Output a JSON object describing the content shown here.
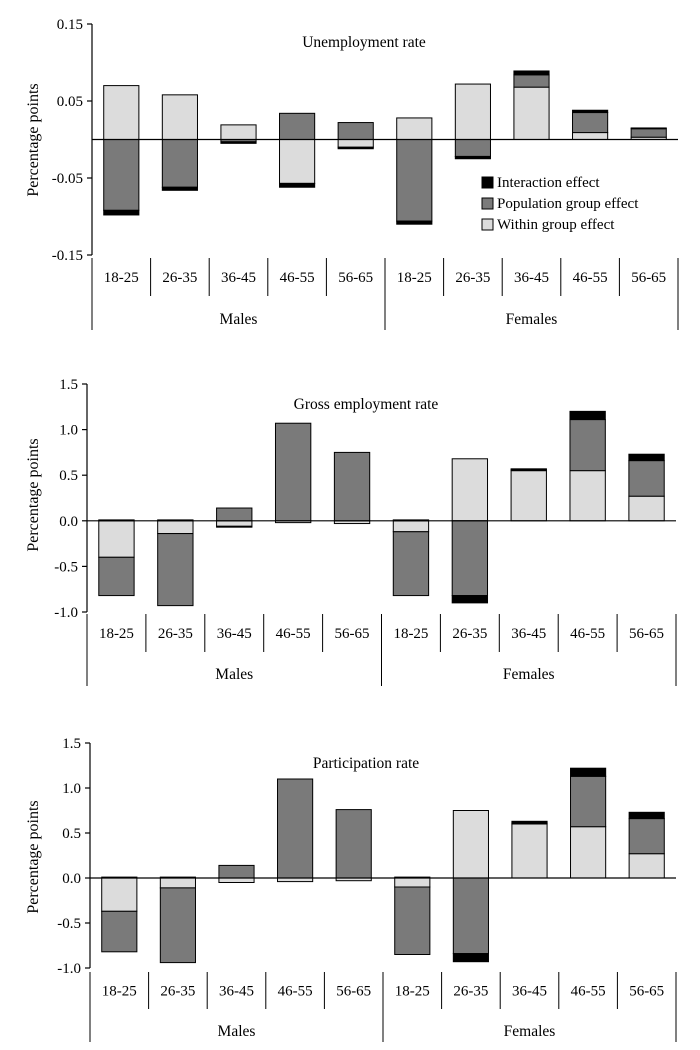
{
  "colors": {
    "within": "#dcdcdc",
    "population": "#7a7a7a",
    "interaction": "#000000",
    "outline": "#000000"
  },
  "chart_data": [
    {
      "type": "bar",
      "stacked": true,
      "title": "Unemployment rate",
      "ylabel": "Percentage points",
      "ylim": [
        -0.15,
        0.15
      ],
      "yticks": [
        0.15,
        0.05,
        -0.05,
        -0.15
      ],
      "ytick_labels": [
        "0.15",
        "0.05",
        "-0.05",
        "-0.15"
      ],
      "categories": [
        "18-25",
        "26-35",
        "36-45",
        "46-55",
        "56-65",
        "18-25",
        "26-35",
        "36-45",
        "46-55",
        "56-65"
      ],
      "groups": [
        {
          "label": "Males",
          "count": 5
        },
        {
          "label": "Females",
          "count": 5
        }
      ],
      "legend": {
        "position": "right-center",
        "entries": [
          "Interaction effect",
          "Population group effect",
          "Within group effect"
        ]
      },
      "series": [
        {
          "name": "Within group effect",
          "key": "within",
          "values": [
            0.07,
            0.058,
            0.019,
            -0.057,
            -0.01,
            0.028,
            0.072,
            0.068,
            0.009,
            0.003
          ]
        },
        {
          "name": "Population group effect",
          "key": "population",
          "values": [
            -0.092,
            -0.062,
            -0.003,
            0.034,
            0.022,
            -0.106,
            -0.022,
            0.016,
            0.026,
            0.011
          ]
        },
        {
          "name": "Interaction effect",
          "key": "interaction",
          "values": [
            -0.006,
            -0.004,
            -0.002,
            -0.005,
            -0.002,
            -0.004,
            -0.003,
            0.005,
            0.003,
            0.001
          ]
        }
      ]
    },
    {
      "type": "bar",
      "stacked": true,
      "title": "Gross employment rate",
      "ylabel": "Percentage points",
      "ylim": [
        -1.0,
        1.5
      ],
      "yticks": [
        1.5,
        1.0,
        0.5,
        0.0,
        -0.5,
        -1.0
      ],
      "ytick_labels": [
        "1.5",
        "1.0",
        "0.5",
        "0.0",
        "-0.5",
        "-1.0"
      ],
      "categories": [
        "18-25",
        "26-35",
        "36-45",
        "46-55",
        "56-65",
        "18-25",
        "26-35",
        "36-45",
        "46-55",
        "56-65"
      ],
      "groups": [
        {
          "label": "Males",
          "count": 5
        },
        {
          "label": "Females",
          "count": 5
        }
      ],
      "series": [
        {
          "name": "Within group effect",
          "key": "within",
          "values": [
            -0.4,
            -0.14,
            -0.06,
            -0.02,
            -0.03,
            -0.12,
            0.68,
            0.55,
            0.55,
            0.27
          ]
        },
        {
          "name": "Population group effect",
          "key": "population",
          "values": [
            -0.42,
            -0.79,
            0.14,
            1.07,
            0.75,
            -0.7,
            -0.82,
            0.01,
            0.56,
            0.39
          ]
        },
        {
          "name": "Interaction effect",
          "key": "interaction",
          "values": [
            0.01,
            0.01,
            -0.01,
            0.0,
            0.0,
            0.01,
            -0.08,
            0.01,
            0.09,
            0.07
          ]
        }
      ]
    },
    {
      "type": "bar",
      "stacked": true,
      "title": "Participation rate",
      "ylabel": "Percentage points",
      "ylim": [
        -1.0,
        1.5
      ],
      "yticks": [
        1.5,
        1.0,
        0.5,
        0.0,
        -0.5,
        -1.0
      ],
      "ytick_labels": [
        "1.5",
        "1.0",
        "0.5",
        "0.0",
        "-0.5",
        "-1.0"
      ],
      "categories": [
        "18-25",
        "26-35",
        "36-45",
        "46-55",
        "56-65",
        "18-25",
        "26-35",
        "36-45",
        "46-55",
        "56-65"
      ],
      "groups": [
        {
          "label": "Males",
          "count": 5
        },
        {
          "label": "Females",
          "count": 5
        }
      ],
      "series": [
        {
          "name": "Within group effect",
          "key": "within",
          "values": [
            -0.37,
            -0.11,
            -0.05,
            -0.04,
            -0.03,
            -0.1,
            0.75,
            0.6,
            0.57,
            0.27
          ]
        },
        {
          "name": "Population group effect",
          "key": "population",
          "values": [
            -0.45,
            -0.83,
            0.14,
            1.1,
            0.76,
            -0.75,
            -0.84,
            0.01,
            0.56,
            0.39
          ]
        },
        {
          "name": "Interaction effect",
          "key": "interaction",
          "values": [
            0.01,
            0.01,
            0.0,
            0.0,
            0.0,
            0.01,
            -0.09,
            0.02,
            0.09,
            0.07
          ]
        }
      ]
    }
  ]
}
